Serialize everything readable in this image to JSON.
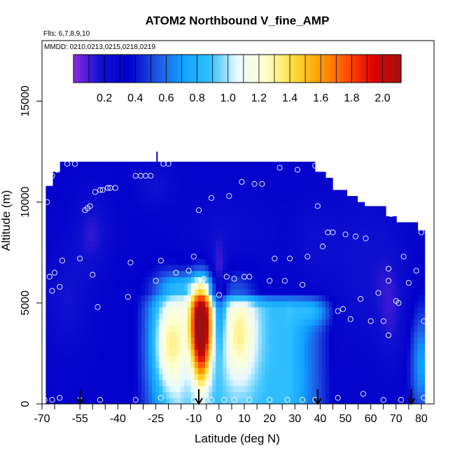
{
  "chart_data": {
    "type": "heatmap",
    "title": "ATOM2 Northbound V_fine_AMP",
    "flights_label": "Flts: 6,7,8,9,10",
    "mmdd_label": "MMDD: 0210,0213,0215,0218,0219",
    "xlabel": "Latitude (deg N)",
    "ylabel": "Altitude (m)",
    "xlim": [
      -70,
      85
    ],
    "ylim": [
      0,
      18000
    ],
    "xticks": [
      "-70",
      "-55",
      "-40",
      "-25",
      "-10",
      "0",
      "10",
      "20",
      "30",
      "40",
      "50",
      "60",
      "70",
      "80"
    ],
    "xtick_values": [
      -70,
      -55,
      -40,
      -25,
      -10,
      0,
      10,
      20,
      30,
      40,
      50,
      60,
      70,
      80
    ],
    "xticks_hidden": [
      "-65",
      "-50",
      "-45",
      "-35",
      "-30",
      "-20",
      "-15",
      "-5",
      "5",
      "15",
      "25",
      "35",
      "45",
      "55",
      "65",
      "75"
    ],
    "xtick_hidden_values": [
      -65,
      -50,
      -45,
      -35,
      -30,
      -20,
      -15,
      -5,
      5,
      15,
      25,
      35,
      45,
      55,
      65,
      75
    ],
    "yticks": [
      "0",
      "5000",
      "10000",
      "15000"
    ],
    "ytick_values": [
      0,
      5000,
      10000,
      15000
    ],
    "colorbar": {
      "min": 0,
      "max": 2.12,
      "labels": [
        "0.2",
        "0.4",
        "0.6",
        "0.8",
        "1.0",
        "1.2",
        "1.4",
        "1.6",
        "1.8",
        "2.0"
      ],
      "label_values": [
        0.2,
        0.4,
        0.6,
        0.8,
        1.0,
        1.2,
        1.4,
        1.6,
        1.8,
        2.0
      ],
      "gridlines": [
        0.1,
        0.2,
        0.3,
        0.4,
        0.5,
        0.6,
        0.7,
        0.8,
        0.9,
        1.0,
        1.1,
        1.2,
        1.3,
        1.4,
        1.5,
        1.6,
        1.7,
        1.8,
        1.9,
        2.0
      ],
      "stops": [
        "#8a2be2",
        "#1010d0",
        "#0000cc",
        "#2050e0",
        "#10a0ff",
        "#30c0ff",
        "#e8f8ff",
        "#ffffd0",
        "#ffe040",
        "#ffa000",
        "#ff5000",
        "#e00000",
        "#a01010"
      ]
    },
    "arrows_lat": [
      -55,
      -8,
      39,
      76
    ],
    "points": [
      [
        -68,
        10000
      ],
      [
        -67,
        6300
      ],
      [
        -66,
        5600
      ],
      [
        -65,
        6500
      ],
      [
        -63,
        5800
      ],
      [
        -62,
        7100
      ],
      [
        -67,
        11000
      ],
      [
        -66,
        11300
      ],
      [
        -64,
        11600
      ],
      [
        -60,
        11900
      ],
      [
        -57,
        11900
      ],
      [
        -55,
        7200
      ],
      [
        -53,
        9600
      ],
      [
        -52,
        9700
      ],
      [
        -51,
        9800
      ],
      [
        -50,
        6400
      ],
      [
        -48,
        4800
      ],
      [
        -49,
        10500
      ],
      [
        -47,
        10600
      ],
      [
        -46,
        10600
      ],
      [
        -44,
        10700
      ],
      [
        -43,
        10700
      ],
      [
        -41,
        10700
      ],
      [
        -36,
        5300
      ],
      [
        -35,
        7000
      ],
      [
        -33,
        11300
      ],
      [
        -31,
        11300
      ],
      [
        -29,
        11300
      ],
      [
        -27,
        11300
      ],
      [
        -25,
        6100
      ],
      [
        -23,
        7100
      ],
      [
        -22,
        11900
      ],
      [
        -20,
        11900
      ],
      [
        -17,
        6500
      ],
      [
        -12,
        6600
      ],
      [
        -10,
        7300
      ],
      [
        -8,
        9600
      ],
      [
        -6,
        6200
      ],
      [
        -3,
        10200
      ],
      [
        0,
        5400
      ],
      [
        3,
        6300
      ],
      [
        4,
        10300
      ],
      [
        6,
        6200
      ],
      [
        9,
        11000
      ],
      [
        10,
        6300
      ],
      [
        12,
        6300
      ],
      [
        14,
        10900
      ],
      [
        17,
        10900
      ],
      [
        20,
        6100
      ],
      [
        22,
        7200
      ],
      [
        24,
        11700
      ],
      [
        26,
        6100
      ],
      [
        28,
        7200
      ],
      [
        31,
        11600
      ],
      [
        33,
        5900
      ],
      [
        35,
        7300
      ],
      [
        38,
        11800
      ],
      [
        39,
        9800
      ],
      [
        41,
        7800
      ],
      [
        43,
        8500
      ],
      [
        45,
        8500
      ],
      [
        47,
        4600
      ],
      [
        49,
        4700
      ],
      [
        50,
        8400
      ],
      [
        52,
        4200
      ],
      [
        54,
        8300
      ],
      [
        56,
        5200
      ],
      [
        58,
        8200
      ],
      [
        60,
        4100
      ],
      [
        63,
        5500
      ],
      [
        65,
        4100
      ],
      [
        67,
        3400
      ],
      [
        67,
        6100
      ],
      [
        67,
        6700
      ],
      [
        68,
        9400
      ],
      [
        70,
        5100
      ],
      [
        71,
        5000
      ],
      [
        73,
        7300
      ],
      [
        74,
        9400
      ],
      [
        75,
        6000
      ],
      [
        78,
        6600
      ],
      [
        80,
        8500
      ],
      [
        81,
        4100
      ],
      [
        -69,
        200
      ],
      [
        -66,
        200
      ],
      [
        -63,
        300
      ],
      [
        -55,
        200
      ],
      [
        -47,
        200
      ],
      [
        -33,
        200
      ],
      [
        -23,
        300
      ],
      [
        -10,
        200
      ],
      [
        -3,
        200
      ],
      [
        2,
        200
      ],
      [
        6,
        200
      ],
      [
        12,
        200
      ],
      [
        20,
        200
      ],
      [
        27,
        200
      ],
      [
        33,
        200
      ],
      [
        38,
        200
      ],
      [
        47,
        300
      ],
      [
        57,
        500
      ],
      [
        65,
        200
      ],
      [
        72,
        200
      ],
      [
        81,
        300
      ]
    ]
  }
}
